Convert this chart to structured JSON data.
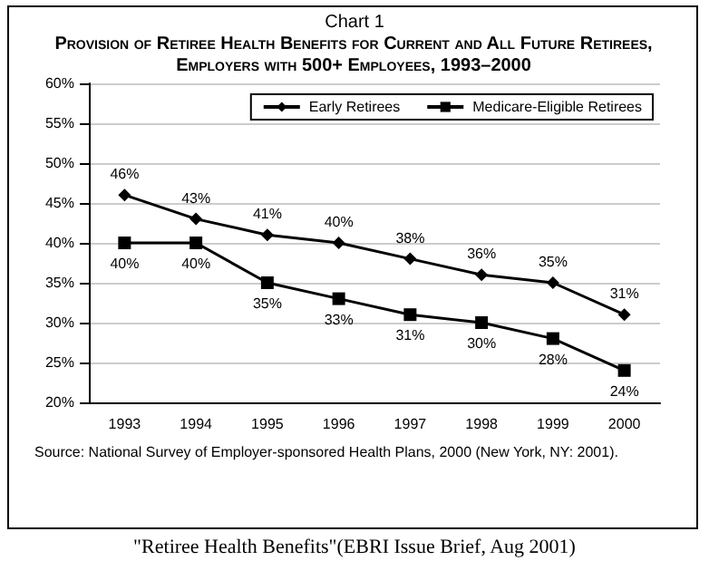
{
  "chart_data": {
    "type": "line",
    "title": "Chart 1",
    "subtitle": "Provision of Retiree Health Benefits for Current and All Future Retirees, Employers with 500+ Employees, 1993–2000",
    "categories": [
      "1993",
      "1994",
      "1995",
      "1996",
      "1997",
      "1998",
      "1999",
      "2000"
    ],
    "series": [
      {
        "name": "Early Retirees",
        "color": "#000000",
        "marker": "diamond",
        "values": [
          46,
          43,
          41,
          40,
          38,
          36,
          35,
          31
        ],
        "value_labels": [
          "46%",
          "43%",
          "41%",
          "40%",
          "38%",
          "36%",
          "35%",
          "31%"
        ]
      },
      {
        "name": "Medicare-Eligible Retirees",
        "color": "#000000",
        "marker": "square",
        "values": [
          40,
          40,
          35,
          33,
          31,
          30,
          28,
          24
        ],
        "value_labels": [
          "40%",
          "40%",
          "35%",
          "33%",
          "31%",
          "30%",
          "28%",
          "24%"
        ]
      }
    ],
    "ylim": [
      20,
      60
    ],
    "yticks": [
      {
        "value": 20,
        "label": "20%"
      },
      {
        "value": 25,
        "label": "25%"
      },
      {
        "value": 30,
        "label": "30%"
      },
      {
        "value": 35,
        "label": "35%"
      },
      {
        "value": 40,
        "label": "40%"
      },
      {
        "value": 45,
        "label": "45%"
      },
      {
        "value": 50,
        "label": "50%"
      },
      {
        "value": 55,
        "label": "55%"
      },
      {
        "value": 60,
        "label": "60%"
      }
    ],
    "grid": "y",
    "legend": "top right",
    "line_style": "solid",
    "annotations": [
      "Source: National Survey of Employer-sponsored Health Plans, 2000 (New York, NY: 2001).",
      "\"Retiree Health Benefits\"(EBRI Issue Brief, Aug 2001)"
    ]
  }
}
